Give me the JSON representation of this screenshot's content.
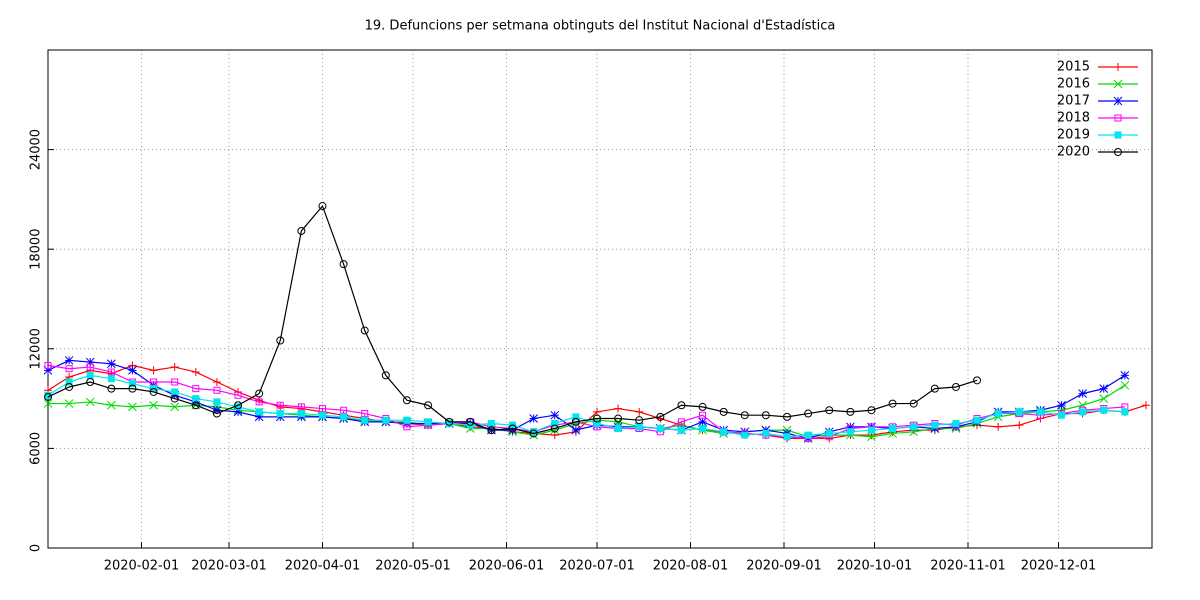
{
  "chart_data": {
    "type": "line",
    "title": "19. Defuncions per setmana obtinguts del Institut Nacional d'Estadística",
    "x": [
      "2020-01-01",
      "2020-01-08",
      "2020-01-15",
      "2020-01-22",
      "2020-01-29",
      "2020-02-05",
      "2020-02-12",
      "2020-02-19",
      "2020-02-26",
      "2020-03-04",
      "2020-03-11",
      "2020-03-18",
      "2020-03-25",
      "2020-04-01",
      "2020-04-08",
      "2020-04-15",
      "2020-04-22",
      "2020-04-29",
      "2020-05-06",
      "2020-05-13",
      "2020-05-20",
      "2020-05-27",
      "2020-06-03",
      "2020-06-10",
      "2020-06-17",
      "2020-06-24",
      "2020-07-01",
      "2020-07-08",
      "2020-07-15",
      "2020-07-22",
      "2020-07-29",
      "2020-08-05",
      "2020-08-12",
      "2020-08-19",
      "2020-08-26",
      "2020-09-02",
      "2020-09-09",
      "2020-09-16",
      "2020-09-23",
      "2020-09-30",
      "2020-10-07",
      "2020-10-14",
      "2020-10-21",
      "2020-10-28",
      "2020-11-04",
      "2020-11-11",
      "2020-11-18",
      "2020-11-25",
      "2020-12-02",
      "2020-12-09",
      "2020-12-16",
      "2020-12-23",
      "2020-12-30"
    ],
    "series": [
      {
        "name": "2015",
        "color": "#ff0000",
        "marker": "plus",
        "values": [
          9500,
          10300,
          10700,
          10500,
          11000,
          10700,
          10900,
          10600,
          10000,
          9400,
          8900,
          8500,
          8400,
          8200,
          8000,
          7800,
          7600,
          7500,
          7400,
          7500,
          7300,
          7200,
          7000,
          6900,
          6800,
          7000,
          8200,
          8400,
          8200,
          7800,
          7400,
          7100,
          7000,
          6900,
          6800,
          6600,
          6600,
          6600,
          6800,
          6800,
          7000,
          7100,
          7100,
          7300,
          7400,
          7300,
          7400,
          7800,
          8100,
          8100,
          8300,
          8200,
          8600
        ]
      },
      {
        "name": "2016",
        "color": "#00dd00",
        "marker": "cross",
        "values": [
          8700,
          8700,
          8800,
          8600,
          8500,
          8600,
          8500,
          8600,
          8500,
          8300,
          8200,
          8100,
          8000,
          7900,
          7800,
          7700,
          7600,
          7600,
          7400,
          7500,
          7200,
          7200,
          7000,
          6800,
          7100,
          7500,
          7700,
          7600,
          7300,
          7200,
          7400,
          7100,
          6900,
          7000,
          7100,
          7100,
          6700,
          6800,
          6800,
          6700,
          6900,
          7000,
          7200,
          7200,
          7500,
          7900,
          8100,
          8200,
          8300,
          8600,
          9000,
          9800,
          null
        ]
      },
      {
        "name": "2017",
        "color": "#0000ff",
        "marker": "star",
        "values": [
          10700,
          11300,
          11200,
          11100,
          10700,
          9800,
          9200,
          8800,
          8300,
          8200,
          7900,
          7900,
          7900,
          7900,
          7800,
          7600,
          7600,
          7500,
          7500,
          7500,
          7500,
          7100,
          7100,
          7800,
          8000,
          7100,
          7400,
          7300,
          7300,
          7200,
          7100,
          7600,
          7100,
          7000,
          7100,
          6900,
          6600,
          7000,
          7300,
          7300,
          7200,
          7300,
          7200,
          7300,
          7600,
          8200,
          8200,
          8300,
          8600,
          9300,
          9600,
          10400,
          null
        ]
      },
      {
        "name": "2018",
        "color": "#ff00ff",
        "marker": "square",
        "values": [
          11000,
          10800,
          10900,
          10600,
          10000,
          10000,
          10000,
          9600,
          9500,
          9200,
          8800,
          8600,
          8500,
          8400,
          8300,
          8100,
          7800,
          7300,
          7400,
          7500,
          7600,
          7300,
          7200,
          7000,
          7400,
          7600,
          7300,
          7200,
          7200,
          7000,
          7600,
          8000,
          7000,
          6900,
          6800,
          6700,
          6600,
          6700,
          7200,
          7300,
          7300,
          7400,
          7500,
          7400,
          7800,
          8100,
          8100,
          8000,
          8100,
          8300,
          8400,
          8500,
          null
        ]
      },
      {
        "name": "2019",
        "color": "#00e5ee",
        "marker": "filled-square",
        "values": [
          9200,
          10000,
          10400,
          10200,
          9900,
          9600,
          9400,
          9000,
          8800,
          8500,
          8200,
          8100,
          8100,
          8000,
          7900,
          7700,
          7700,
          7700,
          7600,
          7500,
          7400,
          7500,
          7400,
          7000,
          7500,
          7900,
          7500,
          7200,
          7300,
          7200,
          7100,
          7200,
          7000,
          6800,
          6900,
          6700,
          6800,
          6900,
          7000,
          7100,
          7200,
          7300,
          7400,
          7500,
          7700,
          8100,
          8200,
          8200,
          8000,
          8200,
          8300,
          8200,
          null
        ]
      },
      {
        "name": "2020",
        "color": "#000000",
        "marker": "circle",
        "values": [
          9100,
          9700,
          10000,
          9600,
          9600,
          9400,
          9000,
          8600,
          8100,
          8600,
          9300,
          12500,
          19100,
          20600,
          17100,
          13100,
          10400,
          8900,
          8600,
          7600,
          7600,
          7100,
          7200,
          6900,
          7200,
          7600,
          7800,
          7800,
          7700,
          7900,
          8600,
          8500,
          8200,
          8000,
          8000,
          7900,
          8100,
          8300,
          8200,
          8300,
          8700,
          8700,
          9600,
          9700,
          10100,
          null,
          null,
          null,
          null,
          null,
          null,
          null,
          null
        ]
      }
    ],
    "xlim": [
      "2020-01-01",
      "2021-01-01"
    ],
    "xticks": [
      "2020-02-01",
      "2020-03-01",
      "2020-04-01",
      "2020-05-01",
      "2020-06-01",
      "2020-07-01",
      "2020-08-01",
      "2020-09-01",
      "2020-10-01",
      "2020-11-01",
      "2020-12-01"
    ],
    "ylim": [
      0,
      30000
    ],
    "yticks": [
      0,
      6000,
      12000,
      18000,
      24000
    ],
    "grid": true,
    "legend": "top-right"
  }
}
